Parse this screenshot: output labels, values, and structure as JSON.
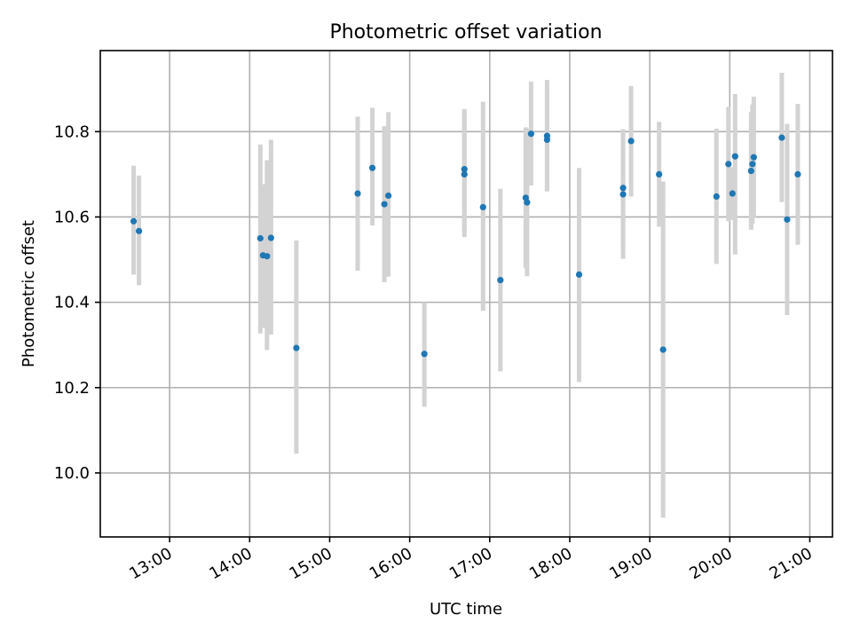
{
  "chart_data": {
    "type": "scatter",
    "title": "Photometric offset variation",
    "xlabel": "UTC time",
    "ylabel": "Photometric offset",
    "xlim": [
      "12:08",
      "21:17"
    ],
    "ylim": [
      9.85,
      10.99
    ],
    "grid": true,
    "xticks": [
      "13:00",
      "14:00",
      "15:00",
      "16:00",
      "17:00",
      "18:00",
      "19:00",
      "20:00",
      "21:00"
    ],
    "yticks": [
      "10.0",
      "10.2",
      "10.4",
      "10.6",
      "10.8"
    ],
    "colors": {
      "point": "#1f77b4",
      "errorbar": "#d3d3d3",
      "grid": "#b0b0b0"
    },
    "points": [
      {
        "t": "12:33",
        "y": 10.59,
        "lo": 10.465,
        "hi": 10.72
      },
      {
        "t": "12:37",
        "y": 10.567,
        "lo": 10.44,
        "hi": 10.697
      },
      {
        "t": "14:08",
        "y": 10.55,
        "lo": 10.327,
        "hi": 10.77
      },
      {
        "t": "14:10",
        "y": 10.51,
        "lo": 10.34,
        "hi": 10.677
      },
      {
        "t": "14:13",
        "y": 10.508,
        "lo": 10.288,
        "hi": 10.733
      },
      {
        "t": "14:16",
        "y": 10.551,
        "lo": 10.324,
        "hi": 10.781
      },
      {
        "t": "14:35",
        "y": 10.293,
        "lo": 10.045,
        "hi": 10.545
      },
      {
        "t": "15:21",
        "y": 10.655,
        "lo": 10.474,
        "hi": 10.835
      },
      {
        "t": "15:32",
        "y": 10.715,
        "lo": 10.58,
        "hi": 10.856
      },
      {
        "t": "15:41",
        "y": 10.63,
        "lo": 10.447,
        "hi": 10.813
      },
      {
        "t": "15:44",
        "y": 10.65,
        "lo": 10.46,
        "hi": 10.846
      },
      {
        "t": "16:11",
        "y": 10.279,
        "lo": 10.155,
        "hi": 10.4
      },
      {
        "t": "16:41",
        "y": 10.712,
        "lo": 10.57,
        "hi": 10.85
      },
      {
        "t": "16:41",
        "y": 10.7,
        "lo": 10.553,
        "hi": 10.853
      },
      {
        "t": "16:55",
        "y": 10.623,
        "lo": 10.38,
        "hi": 10.87
      },
      {
        "t": "17:08",
        "y": 10.452,
        "lo": 10.238,
        "hi": 10.666
      },
      {
        "t": "17:27",
        "y": 10.645,
        "lo": 10.48,
        "hi": 10.81
      },
      {
        "t": "17:28",
        "y": 10.634,
        "lo": 10.461,
        "hi": 10.807
      },
      {
        "t": "17:31",
        "y": 10.795,
        "lo": 10.674,
        "hi": 10.917
      },
      {
        "t": "17:43",
        "y": 10.79,
        "lo": 10.66,
        "hi": 10.921
      },
      {
        "t": "17:43",
        "y": 10.781,
        "lo": 10.66,
        "hi": 10.9
      },
      {
        "t": "18:07",
        "y": 10.465,
        "lo": 10.213,
        "hi": 10.715
      },
      {
        "t": "18:40",
        "y": 10.653,
        "lo": 10.502,
        "hi": 10.804
      },
      {
        "t": "18:40",
        "y": 10.668,
        "lo": 10.53,
        "hi": 10.806
      },
      {
        "t": "18:46",
        "y": 10.778,
        "lo": 10.648,
        "hi": 10.907
      },
      {
        "t": "19:07",
        "y": 10.7,
        "lo": 10.577,
        "hi": 10.823
      },
      {
        "t": "19:10",
        "y": 10.289,
        "lo": 9.895,
        "hi": 10.683
      },
      {
        "t": "19:50",
        "y": 10.648,
        "lo": 10.49,
        "hi": 10.807
      },
      {
        "t": "19:59",
        "y": 10.724,
        "lo": 10.59,
        "hi": 10.858
      },
      {
        "t": "20:02",
        "y": 10.655,
        "lo": 10.593,
        "hi": 10.717
      },
      {
        "t": "20:04",
        "y": 10.742,
        "lo": 10.512,
        "hi": 10.888
      },
      {
        "t": "20:16",
        "y": 10.708,
        "lo": 10.57,
        "hi": 10.846
      },
      {
        "t": "20:17",
        "y": 10.724,
        "lo": 10.584,
        "hi": 10.864
      },
      {
        "t": "20:18",
        "y": 10.74,
        "lo": 10.598,
        "hi": 10.882
      },
      {
        "t": "20:39",
        "y": 10.786,
        "lo": 10.635,
        "hi": 10.938
      },
      {
        "t": "20:43",
        "y": 10.594,
        "lo": 10.37,
        "hi": 10.818
      },
      {
        "t": "20:51",
        "y": 10.7,
        "lo": 10.535,
        "hi": 10.865
      }
    ]
  }
}
